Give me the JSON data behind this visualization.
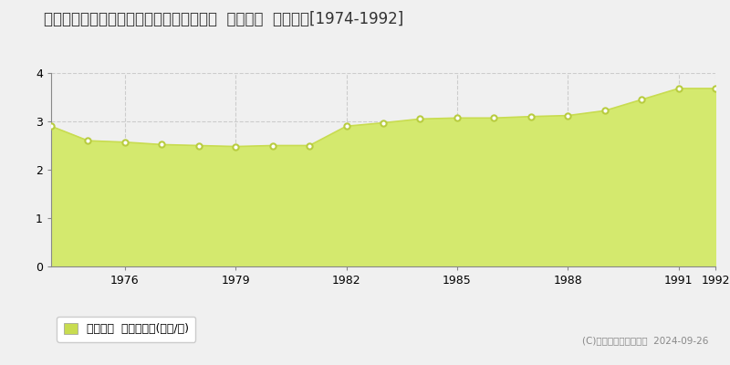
{
  "title": "茨城県北相馬郡利根町大房字谷津４６０番  公示地価  地価推移[1974-1992]",
  "years": [
    1974,
    1975,
    1976,
    1977,
    1978,
    1979,
    1980,
    1981,
    1982,
    1983,
    1984,
    1985,
    1986,
    1987,
    1988,
    1989,
    1990,
    1991,
    1992
  ],
  "values": [
    2.9,
    2.6,
    2.57,
    2.52,
    2.5,
    2.48,
    2.5,
    2.5,
    2.9,
    2.97,
    3.05,
    3.07,
    3.07,
    3.1,
    3.12,
    3.22,
    3.45,
    3.68,
    3.68
  ],
  "fill_color": "#d4e96e",
  "line_color": "#c8dc50",
  "marker_color": "#ffffff",
  "marker_edge_color": "#b8cc40",
  "grid_color": "#cccccc",
  "bg_color": "#f0f0f0",
  "plot_bg_color": "#f0f0f0",
  "ylim": [
    0,
    4
  ],
  "yticks": [
    0,
    1,
    2,
    3,
    4
  ],
  "xlabel_ticks": [
    1976,
    1979,
    1982,
    1985,
    1988,
    1991,
    1992
  ],
  "legend_label": "公示地価  平均坪単価(万円/坪)",
  "legend_marker_color": "#c8dc50",
  "copyright_text": "(C)土地価格ドットコム  2024-09-26",
  "title_fontsize": 12,
  "tick_fontsize": 9,
  "legend_fontsize": 9
}
